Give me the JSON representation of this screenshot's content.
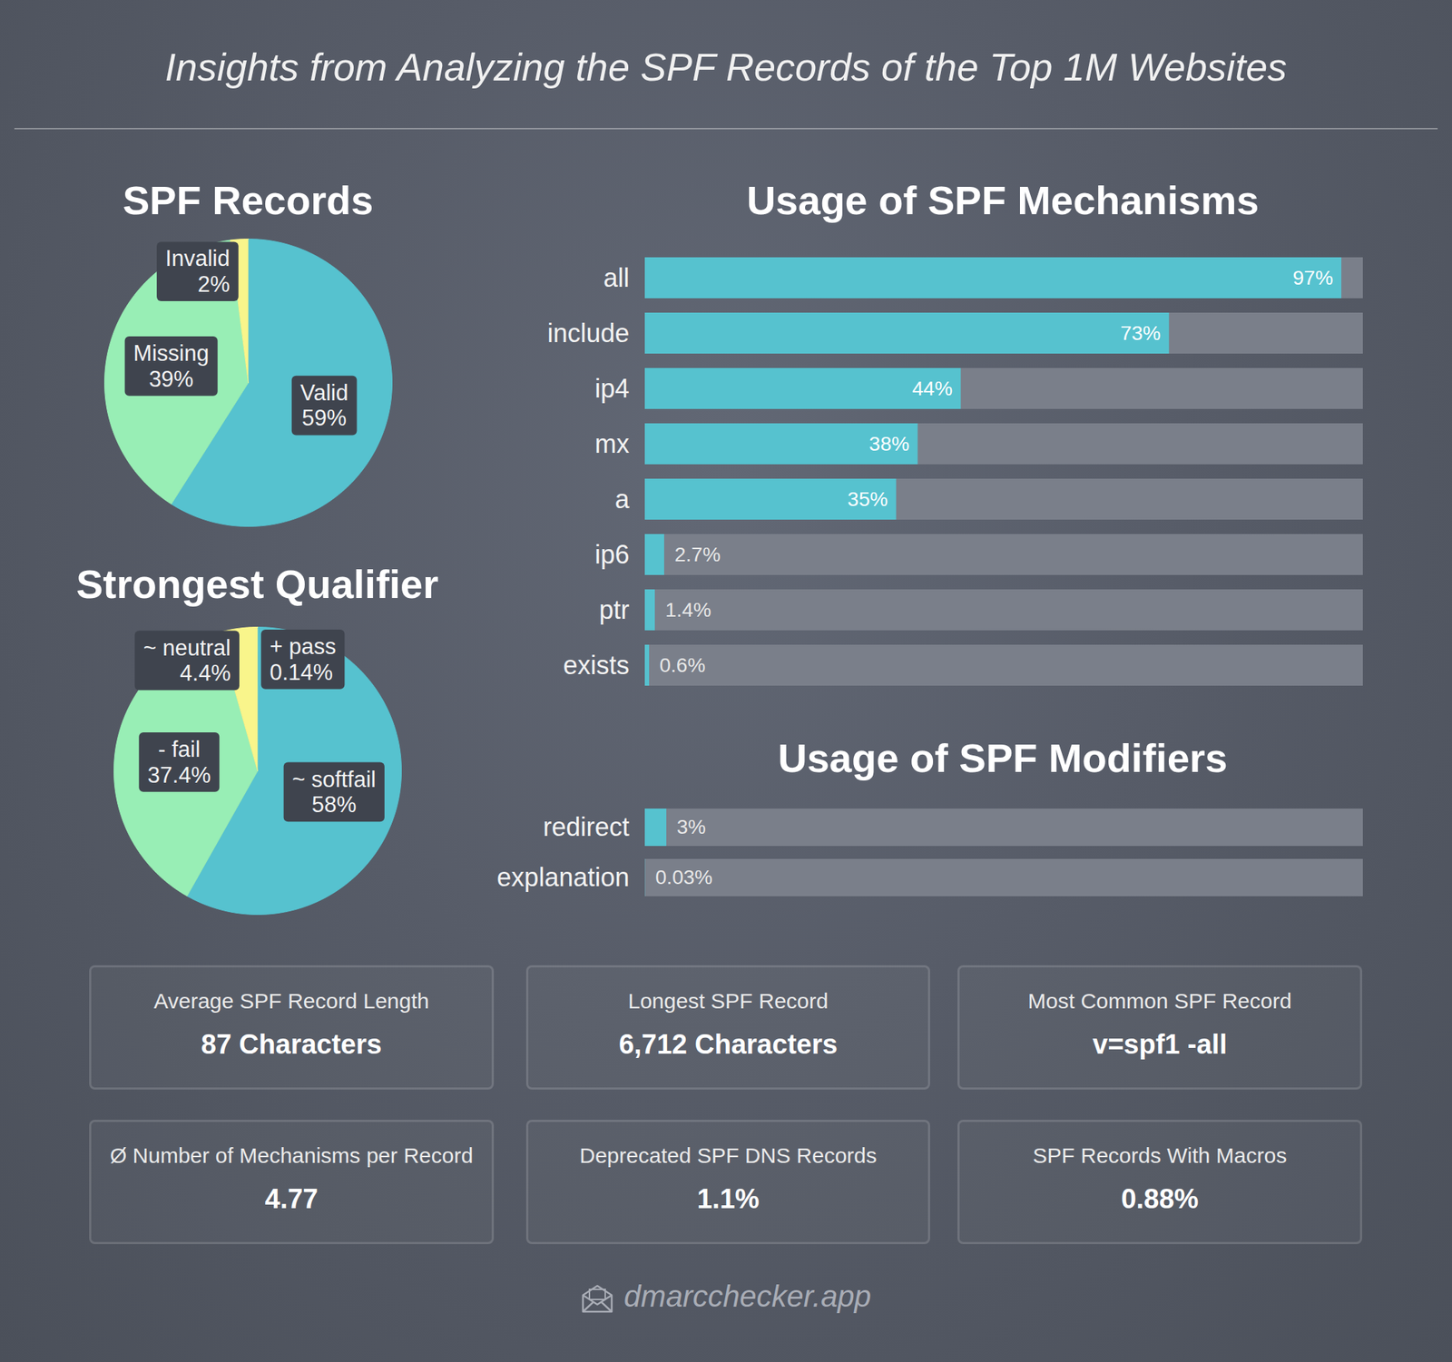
{
  "title": "Insights from Analyzing the SPF Records of the Top 1M Websites",
  "chart_data": [
    {
      "type": "pie",
      "title": "SPF Records",
      "categories": [
        "Valid",
        "Missing",
        "Invalid"
      ],
      "values": [
        59,
        39,
        2
      ],
      "value_labels": [
        "59%",
        "39%",
        "2%"
      ],
      "colors": [
        "#56c2cf",
        "#98eeb5",
        "#f9f58b"
      ],
      "data_labels": true
    },
    {
      "type": "pie",
      "title": "Strongest Qualifier",
      "categories": [
        "+ pass",
        "~ softfail",
        "- fail",
        "~ neutral"
      ],
      "values": [
        0.14,
        58,
        37.4,
        4.4
      ],
      "value_labels": [
        "0.14%",
        "58%",
        "37.4%",
        "4.4%"
      ],
      "colors": [
        "#56c2cf",
        "#56c2cf",
        "#98eeb5",
        "#f9f58b"
      ],
      "data_labels": true
    },
    {
      "type": "bar",
      "orientation": "horizontal",
      "title": "Usage of SPF Mechanisms",
      "categories": [
        "all",
        "include",
        "ip4",
        "mx",
        "a",
        "ip6",
        "ptr",
        "exists"
      ],
      "values": [
        97,
        73,
        44,
        38,
        35,
        2.7,
        1.4,
        0.6
      ],
      "value_labels": [
        "97%",
        "73%",
        "44%",
        "38%",
        "35%",
        "2.7%",
        "1.4%",
        "0.6%"
      ],
      "color": "#56c2cf",
      "xlim": [
        0,
        100
      ],
      "xticks": [],
      "tick_labels": "y",
      "data_labels": true
    },
    {
      "type": "bar",
      "orientation": "horizontal",
      "title": "Usage of SPF Modifiers",
      "categories": [
        "redirect",
        "explanation"
      ],
      "values": [
        3,
        0.03
      ],
      "value_labels": [
        "3%",
        "0.03%"
      ],
      "color": "#56c2cf",
      "xlim": [
        0,
        100
      ],
      "xticks": [],
      "tick_labels": "y",
      "data_labels": true
    }
  ],
  "stats": [
    {
      "label": "Average SPF Record Length",
      "value": "87 Characters"
    },
    {
      "label": "Longest SPF Record",
      "value": "6,712 Characters"
    },
    {
      "label": "Most Common SPF Record",
      "value": "v=spf1 -all"
    },
    {
      "label": "Ø Number of Mechanisms per Record",
      "value": "4.77"
    },
    {
      "label": "Deprecated SPF DNS Records",
      "value": "1.1%"
    },
    {
      "label": "SPF Records With Macros",
      "value": "0.88%"
    }
  ],
  "footer": "dmarcchecker.app"
}
